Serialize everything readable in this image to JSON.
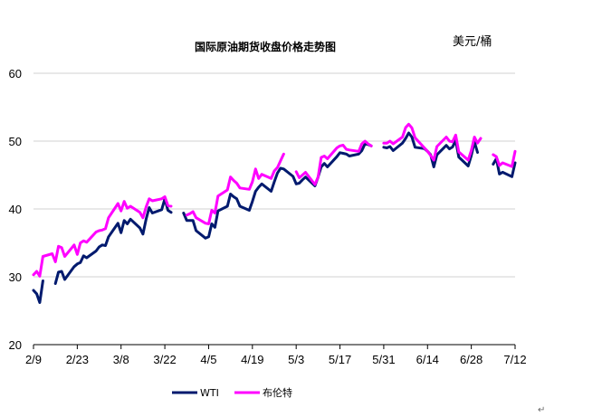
{
  "chart_data": {
    "type": "line",
    "title": "国际原油期货收盘价格走势图",
    "unit_label": "美元/桶",
    "ylim": [
      20,
      60
    ],
    "yticks": [
      "20",
      "30",
      "40",
      "50",
      "60"
    ],
    "xlim": [
      "2/9",
      "7/12"
    ],
    "xticks": [
      "2/9",
      "2/23",
      "3/8",
      "3/22",
      "4/5",
      "4/19",
      "5/3",
      "5/17",
      "5/31",
      "6/14",
      "6/28",
      "7/12"
    ],
    "grid": true,
    "legend": "bottom-left",
    "series": [
      {
        "name": "WTI",
        "color": "#001a6e",
        "points": [
          [
            "2/9",
            28.0
          ],
          [
            "2/10",
            27.5
          ],
          [
            "2/11",
            26.2
          ],
          [
            "2/12",
            29.4
          ],
          [
            "2/16",
            29.0
          ],
          [
            "2/17",
            30.7
          ],
          [
            "2/18",
            30.8
          ],
          [
            "2/19",
            29.6
          ],
          [
            "2/22",
            31.5
          ],
          [
            "2/23",
            31.9
          ],
          [
            "2/24",
            32.1
          ],
          [
            "2/25",
            33.1
          ],
          [
            "2/26",
            32.8
          ],
          [
            "2/29",
            33.8
          ],
          [
            "3/1",
            34.4
          ],
          [
            "3/2",
            34.7
          ],
          [
            "3/3",
            34.6
          ],
          [
            "3/4",
            35.9
          ],
          [
            "3/7",
            37.9
          ],
          [
            "3/8",
            36.5
          ],
          [
            "3/9",
            38.3
          ],
          [
            "3/10",
            37.8
          ],
          [
            "3/11",
            38.5
          ],
          [
            "3/14",
            37.2
          ],
          [
            "3/15",
            36.3
          ],
          [
            "3/16",
            38.5
          ],
          [
            "3/17",
            40.2
          ],
          [
            "3/18",
            39.4
          ],
          [
            "3/21",
            39.9
          ],
          [
            "3/22",
            41.5
          ],
          [
            "3/23",
            39.8
          ],
          [
            "3/24",
            39.5
          ],
          [
            "3/28",
            39.4
          ],
          [
            "3/29",
            38.3
          ],
          [
            "3/30",
            38.3
          ],
          [
            "3/31",
            38.3
          ],
          [
            "4/1",
            36.8
          ],
          [
            "4/4",
            35.7
          ],
          [
            "4/5",
            35.9
          ],
          [
            "4/6",
            37.8
          ],
          [
            "4/7",
            37.3
          ],
          [
            "4/8",
            39.7
          ],
          [
            "4/11",
            40.4
          ],
          [
            "4/12",
            42.2
          ],
          [
            "4/13",
            41.8
          ],
          [
            "4/14",
            41.5
          ],
          [
            "4/15",
            40.4
          ],
          [
            "4/18",
            39.8
          ],
          [
            "4/19",
            41.1
          ],
          [
            "4/20",
            42.6
          ],
          [
            "4/21",
            43.2
          ],
          [
            "4/22",
            43.7
          ],
          [
            "4/25",
            42.6
          ],
          [
            "4/26",
            44.0
          ],
          [
            "4/27",
            45.3
          ],
          [
            "4/28",
            46.0
          ],
          [
            "4/29",
            45.9
          ],
          [
            "5/2",
            44.8
          ],
          [
            "5/3",
            43.7
          ],
          [
            "5/4",
            43.8
          ],
          [
            "5/5",
            44.3
          ],
          [
            "5/6",
            44.7
          ],
          [
            "5/9",
            43.4
          ],
          [
            "5/10",
            44.7
          ],
          [
            "5/11",
            46.2
          ],
          [
            "5/12",
            46.7
          ],
          [
            "5/13",
            46.2
          ],
          [
            "5/16",
            47.7
          ],
          [
            "5/17",
            48.3
          ],
          [
            "5/18",
            48.2
          ],
          [
            "5/19",
            48.1
          ],
          [
            "5/20",
            47.8
          ],
          [
            "5/23",
            48.1
          ],
          [
            "5/24",
            48.6
          ],
          [
            "5/25",
            49.6
          ],
          [
            "5/26",
            49.5
          ],
          [
            "5/27",
            49.3
          ],
          [
            "5/31",
            49.1
          ],
          [
            "6/1",
            49.0
          ],
          [
            "6/2",
            49.2
          ],
          [
            "6/3",
            48.6
          ],
          [
            "6/6",
            49.7
          ],
          [
            "6/7",
            50.4
          ],
          [
            "6/8",
            51.2
          ],
          [
            "6/9",
            50.6
          ],
          [
            "6/10",
            49.1
          ],
          [
            "6/13",
            48.9
          ],
          [
            "6/14",
            48.5
          ],
          [
            "6/15",
            48.0
          ],
          [
            "6/16",
            46.2
          ],
          [
            "6/17",
            47.98
          ],
          [
            "6/20",
            49.37
          ],
          [
            "6/21",
            48.85
          ],
          [
            "6/22",
            49.13
          ],
          [
            "6/23",
            50.11
          ],
          [
            "6/24",
            47.64
          ],
          [
            "6/27",
            46.33
          ],
          [
            "6/28",
            47.85
          ],
          [
            "6/29",
            49.88
          ],
          [
            "6/30",
            48.33
          ],
          [
            "7/5",
            46.6
          ],
          [
            "7/6",
            47.43
          ],
          [
            "7/7",
            45.14
          ],
          [
            "7/8",
            45.41
          ],
          [
            "7/11",
            44.76
          ],
          [
            "7/12",
            46.8
          ]
        ]
      },
      {
        "name": "布伦特",
        "color": "#ff00ff",
        "points": [
          [
            "2/9",
            30.3
          ],
          [
            "2/10",
            30.8
          ],
          [
            "2/11",
            30.1
          ],
          [
            "2/12",
            33.0
          ],
          [
            "2/15",
            33.4
          ],
          [
            "2/16",
            32.2
          ],
          [
            "2/17",
            34.5
          ],
          [
            "2/18",
            34.3
          ],
          [
            "2/19",
            33.0
          ],
          [
            "2/22",
            34.7
          ],
          [
            "2/23",
            33.3
          ],
          [
            "2/24",
            35.0
          ],
          [
            "2/25",
            35.3
          ],
          [
            "2/26",
            35.1
          ],
          [
            "2/29",
            36.6
          ],
          [
            "3/1",
            36.8
          ],
          [
            "3/2",
            36.9
          ],
          [
            "3/3",
            37.1
          ],
          [
            "3/4",
            38.7
          ],
          [
            "3/7",
            40.8
          ],
          [
            "3/8",
            39.7
          ],
          [
            "3/9",
            41.1
          ],
          [
            "3/10",
            40.1
          ],
          [
            "3/11",
            40.4
          ],
          [
            "3/14",
            39.5
          ],
          [
            "3/15",
            38.7
          ],
          [
            "3/16",
            40.3
          ],
          [
            "3/17",
            41.5
          ],
          [
            "3/18",
            41.2
          ],
          [
            "3/21",
            41.5
          ],
          [
            "3/22",
            41.8
          ],
          [
            "3/23",
            40.5
          ],
          [
            "3/24",
            40.4
          ],
          [
            "3/29",
            39.1
          ],
          [
            "3/30",
            39.3
          ],
          [
            "3/31",
            39.6
          ],
          [
            "4/1",
            38.7
          ],
          [
            "4/4",
            37.9
          ],
          [
            "4/5",
            37.8
          ],
          [
            "4/6",
            39.8
          ],
          [
            "4/7",
            39.4
          ],
          [
            "4/8",
            41.9
          ],
          [
            "4/11",
            42.8
          ],
          [
            "4/12",
            44.7
          ],
          [
            "4/13",
            44.2
          ],
          [
            "4/14",
            43.8
          ],
          [
            "4/15",
            43.1
          ],
          [
            "4/18",
            42.9
          ],
          [
            "4/19",
            44.0
          ],
          [
            "4/20",
            45.9
          ],
          [
            "4/21",
            44.5
          ],
          [
            "4/22",
            45.1
          ],
          [
            "4/25",
            44.5
          ],
          [
            "4/26",
            45.6
          ],
          [
            "4/27",
            46.1
          ],
          [
            "4/28",
            47.1
          ],
          [
            "4/29",
            48.1
          ],
          [
            "5/3",
            45.5
          ],
          [
            "5/4",
            44.6
          ],
          [
            "5/5",
            45.0
          ],
          [
            "5/6",
            45.4
          ],
          [
            "5/9",
            43.6
          ],
          [
            "5/10",
            44.7
          ],
          [
            "5/11",
            47.6
          ],
          [
            "5/12",
            47.8
          ],
          [
            "5/13",
            47.4
          ],
          [
            "5/16",
            49.0
          ],
          [
            "5/17",
            49.3
          ],
          [
            "5/18",
            49.4
          ],
          [
            "5/19",
            48.8
          ],
          [
            "5/20",
            48.7
          ],
          [
            "5/23",
            48.5
          ],
          [
            "5/24",
            49.6
          ],
          [
            "5/25",
            50.0
          ],
          [
            "5/26",
            49.6
          ],
          [
            "5/27",
            49.3
          ],
          [
            "5/31",
            49.7
          ],
          [
            "6/1",
            49.7
          ],
          [
            "6/2",
            50.0
          ],
          [
            "6/3",
            49.6
          ],
          [
            "6/6",
            50.6
          ],
          [
            "6/7",
            52.0
          ],
          [
            "6/8",
            52.5
          ],
          [
            "6/9",
            51.95
          ],
          [
            "6/10",
            50.5
          ],
          [
            "6/13",
            49.0
          ],
          [
            "6/14",
            48.5
          ],
          [
            "6/15",
            47.9
          ],
          [
            "6/16",
            47.2
          ],
          [
            "6/17",
            49.2
          ],
          [
            "6/20",
            50.6
          ],
          [
            "6/21",
            50.0
          ],
          [
            "6/22",
            49.9
          ],
          [
            "6/23",
            50.9
          ],
          [
            "6/24",
            48.4
          ],
          [
            "6/27",
            47.2
          ],
          [
            "6/28",
            48.6
          ],
          [
            "6/29",
            50.6
          ],
          [
            "6/30",
            49.7
          ],
          [
            "7/1",
            50.4
          ],
          [
            "7/5",
            48.0
          ],
          [
            "7/6",
            47.7
          ],
          [
            "7/7",
            46.4
          ],
          [
            "7/8",
            46.8
          ],
          [
            "7/11",
            46.25
          ],
          [
            "7/12",
            48.5
          ]
        ]
      }
    ]
  }
}
